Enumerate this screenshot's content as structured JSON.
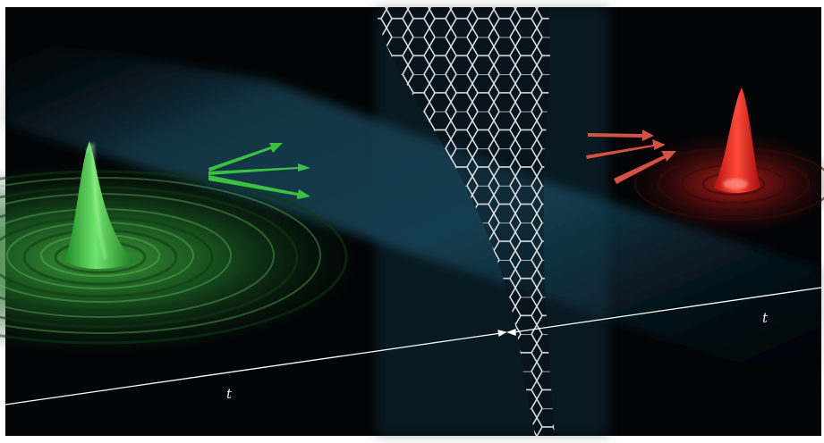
{
  "axis_labels": {
    "left": "t",
    "right": "t"
  },
  "colors": {
    "background": "#020406",
    "haze": "#1f5a73",
    "green_wave": "#2fb436",
    "red_wave": "#e0201c",
    "green_arrow": "#3cc043",
    "red_arrow": "#d25346",
    "lattice": "#d9dde0",
    "axis_line": "#ffffff"
  },
  "icons": {
    "arrow_symbol": "arrow-icon",
    "lattice_symbol": "hexagon-lattice-icon"
  }
}
